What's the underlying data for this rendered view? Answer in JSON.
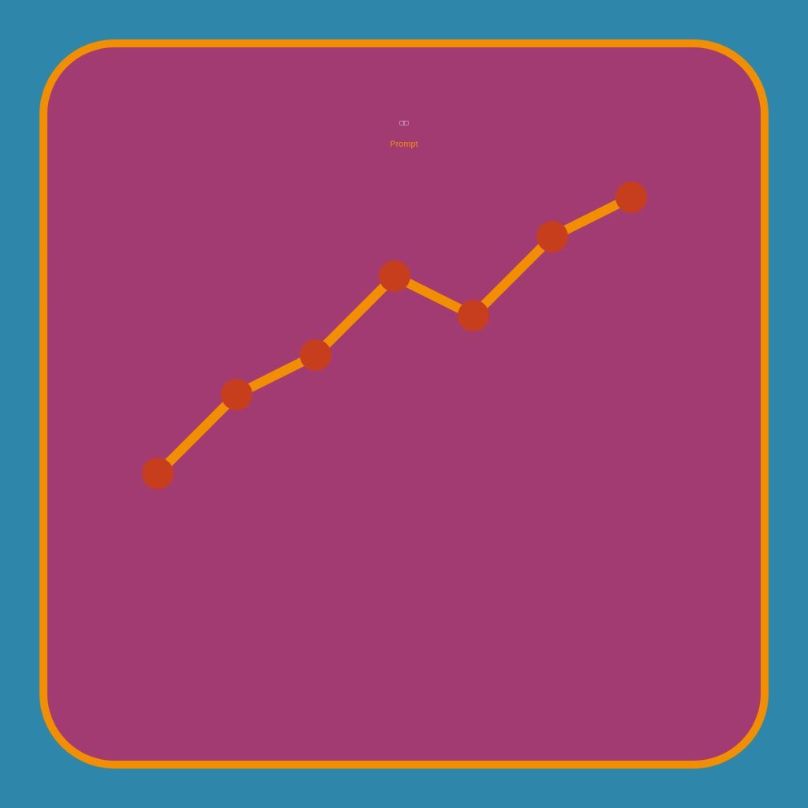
{
  "chart_data": {
    "type": "line",
    "title": "□□",
    "subtitle": "Prompt",
    "categories": [
      null,
      null,
      null,
      null,
      null,
      null,
      null
    ],
    "values": [
      1,
      3,
      4,
      6,
      5,
      7,
      8
    ],
    "ylim": [
      0,
      10
    ],
    "line_color": "#f18f01",
    "marker_color": "#c73e1d"
  }
}
